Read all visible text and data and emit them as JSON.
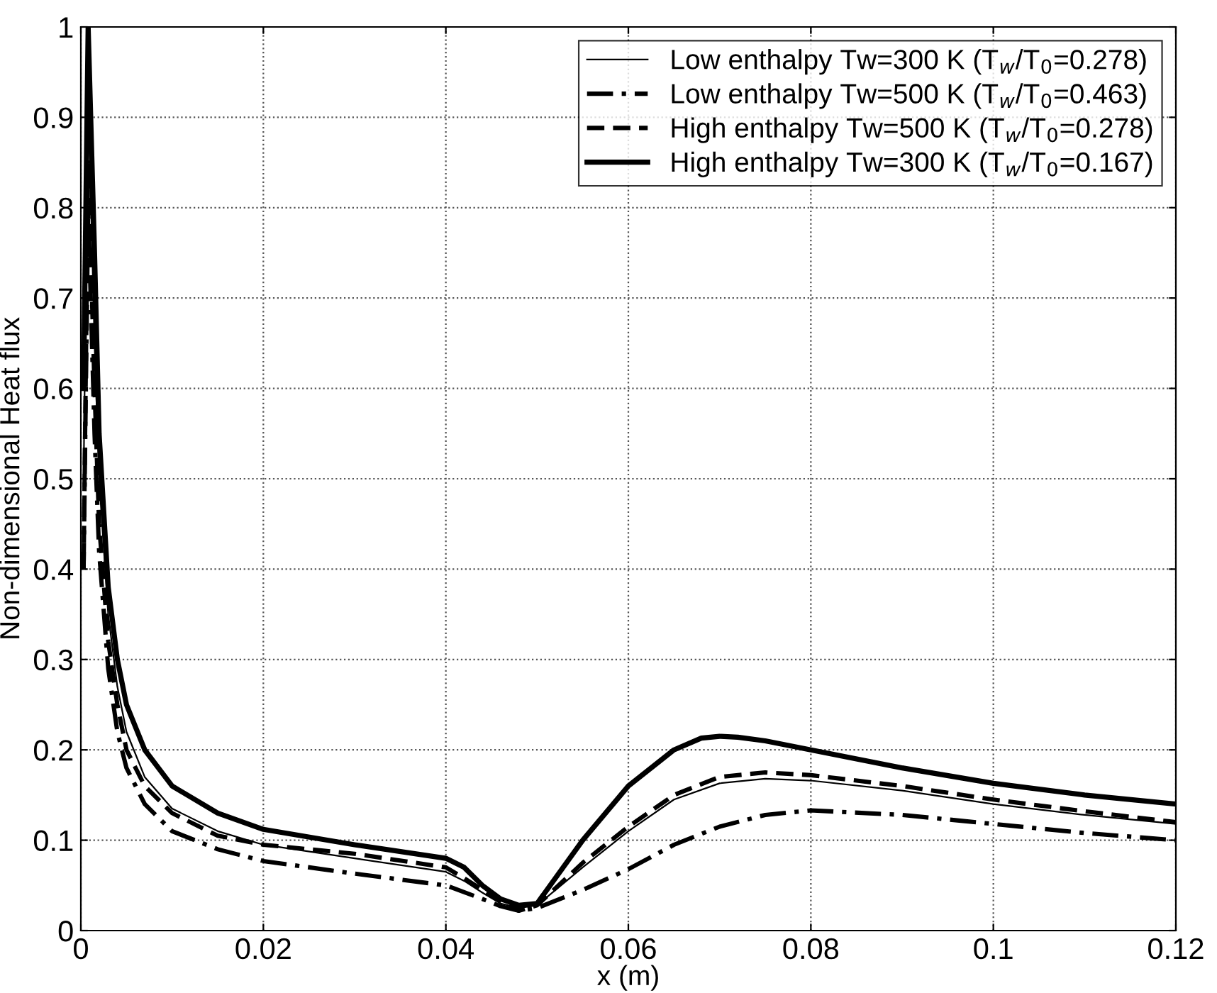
{
  "chart_data": {
    "type": "line",
    "xlabel": "x (m)",
    "ylabel": "Non-dimensional Heat flux",
    "xlim": [
      0,
      0.12
    ],
    "xticks": [
      0,
      0.02,
      0.04,
      0.06,
      0.08,
      0.1,
      0.12
    ],
    "ylim": [
      0,
      1
    ],
    "yticks": [
      0,
      0.1,
      0.2,
      0.3,
      0.4,
      0.5,
      0.6,
      0.7,
      0.8,
      0.9,
      1
    ],
    "grid": true,
    "legend": "top right",
    "marker": "none",
    "series": [
      {
        "name": "Low enthalpy Tw=300 K (T$_{w}$/T$_{0}$=0.278)",
        "color": "#000000",
        "line_style": "solid",
        "x": [
          0.0003,
          0.0008,
          0.0015,
          0.002,
          0.003,
          0.004,
          0.005,
          0.007,
          0.01,
          0.015,
          0.02,
          0.03,
          0.04,
          0.042,
          0.044,
          0.046,
          0.048,
          0.05,
          0.055,
          0.06,
          0.065,
          0.07,
          0.075,
          0.08,
          0.09,
          0.1,
          0.11,
          0.12
        ],
        "values": [
          0.5,
          0.93,
          0.65,
          0.5,
          0.35,
          0.27,
          0.22,
          0.17,
          0.135,
          0.11,
          0.095,
          0.08,
          0.065,
          0.055,
          0.042,
          0.03,
          0.025,
          0.028,
          0.07,
          0.11,
          0.145,
          0.163,
          0.168,
          0.166,
          0.155,
          0.14,
          0.128,
          0.118
        ]
      },
      {
        "name": "Low enthalpy Tw=500 K (T$_{w}$/T$_{0}$=0.463)",
        "color": "#000000",
        "line_style": "dashdot",
        "x": [
          0.0003,
          0.0008,
          0.0015,
          0.002,
          0.003,
          0.004,
          0.005,
          0.007,
          0.01,
          0.015,
          0.02,
          0.03,
          0.04,
          0.044,
          0.046,
          0.048,
          0.05,
          0.055,
          0.06,
          0.065,
          0.07,
          0.075,
          0.08,
          0.09,
          0.1,
          0.11,
          0.12
        ],
        "values": [
          0.4,
          0.8,
          0.55,
          0.42,
          0.29,
          0.22,
          0.18,
          0.14,
          0.11,
          0.09,
          0.077,
          0.063,
          0.05,
          0.035,
          0.027,
          0.022,
          0.025,
          0.045,
          0.068,
          0.095,
          0.115,
          0.128,
          0.133,
          0.128,
          0.118,
          0.108,
          0.1
        ]
      },
      {
        "name": "High enthalpy Tw=500 K (T$_{w}$/T$_{0}$=0.278)",
        "color": "#000000",
        "line_style": "dashed",
        "x": [
          0.0003,
          0.0008,
          0.0015,
          0.002,
          0.003,
          0.004,
          0.005,
          0.007,
          0.01,
          0.015,
          0.02,
          0.03,
          0.04,
          0.042,
          0.044,
          0.046,
          0.048,
          0.05,
          0.055,
          0.06,
          0.065,
          0.07,
          0.075,
          0.08,
          0.09,
          0.1,
          0.11,
          0.12
        ],
        "values": [
          0.4,
          0.85,
          0.6,
          0.45,
          0.32,
          0.25,
          0.2,
          0.16,
          0.13,
          0.105,
          0.095,
          0.085,
          0.07,
          0.058,
          0.045,
          0.032,
          0.022,
          0.028,
          0.075,
          0.115,
          0.15,
          0.17,
          0.175,
          0.172,
          0.16,
          0.145,
          0.132,
          0.12
        ]
      },
      {
        "name": "High enthalpy Tw=300 K (T$_{w}$/T$_{0}$=0.167)",
        "color": "#000000",
        "line_style": "solid",
        "x": [
          0.0003,
          0.0008,
          0.0015,
          0.002,
          0.003,
          0.004,
          0.005,
          0.007,
          0.01,
          0.015,
          0.02,
          0.03,
          0.04,
          0.042,
          0.044,
          0.046,
          0.048,
          0.05,
          0.055,
          0.06,
          0.065,
          0.068,
          0.07,
          0.072,
          0.075,
          0.08,
          0.09,
          0.1,
          0.11,
          0.12
        ],
        "values": [
          0.6,
          1.0,
          0.75,
          0.55,
          0.38,
          0.3,
          0.25,
          0.2,
          0.16,
          0.13,
          0.112,
          0.095,
          0.08,
          0.07,
          0.05,
          0.035,
          0.028,
          0.03,
          0.1,
          0.16,
          0.2,
          0.213,
          0.215,
          0.214,
          0.21,
          0.2,
          0.18,
          0.163,
          0.15,
          0.14
        ]
      }
    ]
  }
}
